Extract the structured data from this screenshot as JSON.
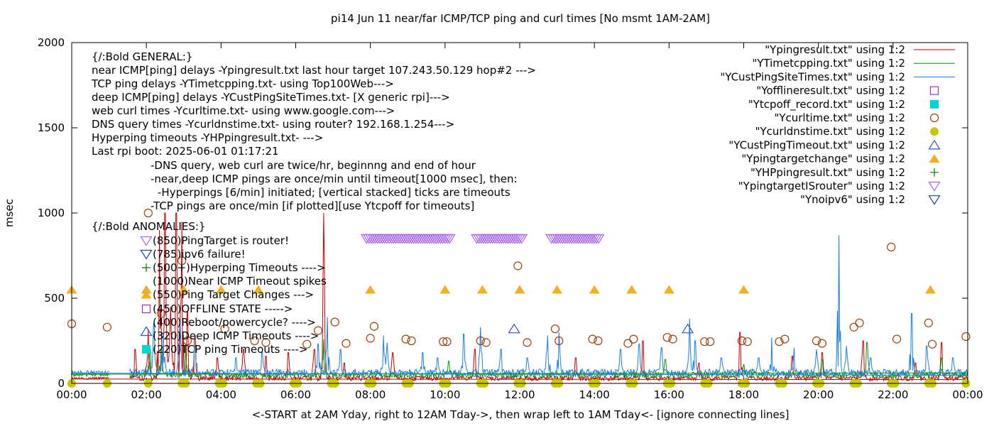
{
  "chart_data": {
    "type": "line",
    "title": "pi14 Jun 11  near/far ICMP/TCP ping and curl times [No msmt 1AM-2AM]",
    "xlabel": "<-START at 2AM Yday, right to 12AM Tday->, then wrap left to 1AM Tday<- [ignore connecting lines]",
    "ylabel": "msec",
    "xlim": [
      0,
      24
    ],
    "ylim": [
      0,
      2000
    ],
    "x_ticks": [
      0,
      2,
      4,
      6,
      8,
      10,
      12,
      14,
      16,
      18,
      20,
      22,
      24
    ],
    "x_tick_labels": [
      "00:00",
      "02:00",
      "04:00",
      "06:00",
      "08:00",
      "10:00",
      "12:00",
      "14:00",
      "16:00",
      "18:00",
      "20:00",
      "22:00",
      "00:00"
    ],
    "y_ticks": [
      0,
      500,
      1000,
      1500,
      2000
    ],
    "y_tick_labels": [
      "0",
      "500",
      "1000",
      "1500",
      "2000"
    ],
    "legend_position": "top-right",
    "legend": [
      {
        "label": "\"Ypingresult.txt\" using 1:2",
        "symbol": "line",
        "color": "#cc0000"
      },
      {
        "label": "\"YTimetcpping.txt\" using 1:2",
        "symbol": "line",
        "color": "#009900"
      },
      {
        "label": "\"YCustPingSiteTimes.txt\" using 1:2",
        "symbol": "line",
        "color": "#1a7fe0"
      },
      {
        "label": "\"Yofflineresult.txt\" using 1:2",
        "symbol": "open-square",
        "color": "#9933cc"
      },
      {
        "label": "\"Ytcpoff_record.txt\" using 1:2",
        "symbol": "filled-square",
        "color": "#00d6d6"
      },
      {
        "label": "\"Ycurltime.txt\" using 1:2",
        "symbol": "open-circle",
        "color": "#a0400a"
      },
      {
        "label": "\"Ycurldnstime.txt\" using 1:2",
        "symbol": "filled-circle",
        "color": "#c8c800"
      },
      {
        "label": "\"YCustPingTimeout.txt\" using 1:2",
        "symbol": "open-triangle-up",
        "color": "#3355cc"
      },
      {
        "label": "\"Ypingtargetchange\" using 1:2",
        "symbol": "filled-triangle-up",
        "color": "#f0b020"
      },
      {
        "label": "\"YHPpingresult.txt\" using 1:2",
        "symbol": "plus",
        "color": "#007700"
      },
      {
        "label": "\"YpingtargetISrouter\" using 1:2",
        "symbol": "open-triangle-down",
        "color": "#aa66ee"
      },
      {
        "label": "\"Ynoipv6\" using 1:2",
        "symbol": "open-triangle-down",
        "color": "#224499"
      }
    ],
    "annotations": [
      "{/:Bold GENERAL:}",
      "near ICMP[ping] delays -Ypingresult.txt last hour target 107.243.50.129 hop#2 --->",
      "TCP ping delays -YTimetcpping.txt- using Top100Web--->",
      "deep ICMP[ping] delays -YCustPingSiteTimes.txt- [X generic rpi]--->",
      "web curl times -Ycurltime.txt- using www.google.com--->",
      "DNS query times -Ycurldnstime.txt- using router? 192.168.1.254--->",
      "Hyperping timeouts -YHPpingresult.txt- --->",
      "Last rpi boot: 2025-06-01 01:17:21",
      "-DNS query, web curl are twice/hr, beginnng and end of hour",
      "-near,deep ICMP pings are once/min until timeout[1000 msec], then:",
      "-Hyperpings [6/min] initiated; [vertical stacked] ticks are timeouts",
      "-TCP pings are once/min [if plotted][use Ytcpoff for timeouts]",
      "{/:Bold ANOMALIES:}",
      "(850)PingTarget is router!",
      "(785)ipv6 failure!",
      "(500+)Hyperping Timeouts ---->",
      "(1000)Near ICMP Timeout spikes",
      "(550)Ping Target Changes --->",
      "(450)OFFLINE STATE ----->",
      "(400)Reboot/powercycle? ---->",
      "(320)Deep ICMP Timeouts ---->",
      "(220)TCP ping Timeouts ---->"
    ],
    "series": [
      {
        "name": "\"Ypingresult.txt\" using 1:2",
        "style": "line",
        "color": "#cc0000",
        "baseline": 30,
        "noise": 15,
        "spikes": [
          [
            1.7,
            200
          ],
          [
            2.05,
            320
          ],
          [
            2.35,
            900
          ],
          [
            2.5,
            1000
          ],
          [
            2.65,
            450
          ],
          [
            2.8,
            1000
          ],
          [
            2.95,
            950
          ],
          [
            3.1,
            420
          ],
          [
            3.3,
            280
          ],
          [
            3.9,
            150
          ],
          [
            4.6,
            200
          ],
          [
            5.2,
            160
          ],
          [
            5.8,
            180
          ],
          [
            6.5,
            200
          ],
          [
            6.75,
            1000
          ],
          [
            7.3,
            120
          ],
          [
            8.6,
            180
          ],
          [
            10.8,
            200
          ],
          [
            13.5,
            150
          ],
          [
            15.3,
            250
          ],
          [
            16.8,
            120
          ],
          [
            17.9,
            300
          ],
          [
            19.3,
            160
          ],
          [
            20.1,
            180
          ],
          [
            21.2,
            250
          ],
          [
            22.6,
            120
          ],
          [
            23.3,
            240
          ]
        ]
      },
      {
        "name": "\"YTimetcpping.txt\" using 1:2",
        "style": "line",
        "color": "#009900",
        "baseline": 50,
        "noise": 18,
        "spikes": [
          [
            2.1,
            200
          ],
          [
            2.4,
            200
          ],
          [
            3.05,
            230
          ],
          [
            6.75,
            260
          ],
          [
            10.1,
            130
          ],
          [
            15.9,
            140
          ],
          [
            18.0,
            110
          ],
          [
            20.1,
            140
          ],
          [
            21.3,
            240
          ],
          [
            23.3,
            150
          ]
        ]
      },
      {
        "name": "\"YCustPingSiteTimes.txt\" using 1:2",
        "style": "line",
        "color": "#1a7fe0",
        "baseline": 65,
        "noise": 20,
        "spikes": [
          [
            2.2,
            350
          ],
          [
            2.45,
            300
          ],
          [
            2.9,
            330
          ],
          [
            3.3,
            220
          ],
          [
            4.4,
            150
          ],
          [
            5.1,
            180
          ],
          [
            6.6,
            230
          ],
          [
            6.85,
            390
          ],
          [
            7.2,
            200
          ],
          [
            8.35,
            280
          ],
          [
            8.45,
            240
          ],
          [
            9.4,
            180
          ],
          [
            9.8,
            150
          ],
          [
            10.5,
            290
          ],
          [
            10.95,
            330
          ],
          [
            11.5,
            200
          ],
          [
            12.2,
            150
          ],
          [
            12.75,
            280
          ],
          [
            13.05,
            300
          ],
          [
            14.7,
            200
          ],
          [
            15.2,
            230
          ],
          [
            15.8,
            210
          ],
          [
            16.55,
            380
          ],
          [
            16.7,
            250
          ],
          [
            17.4,
            150
          ],
          [
            18.4,
            150
          ],
          [
            18.75,
            270
          ],
          [
            19.35,
            210
          ],
          [
            19.95,
            200
          ],
          [
            20.55,
            870
          ],
          [
            20.75,
            220
          ],
          [
            21.4,
            150
          ],
          [
            22.5,
            410
          ],
          [
            22.9,
            220
          ],
          [
            23.6,
            150
          ]
        ]
      },
      {
        "name": "\"Ycurltime.txt\" using 1:2",
        "style": "open-circle",
        "color": "#a0400a",
        "points": [
          [
            0.0,
            350
          ],
          [
            0.95,
            330
          ],
          [
            2.05,
            1000
          ],
          [
            2.4,
            410
          ],
          [
            2.95,
            720
          ],
          [
            3.1,
            250
          ],
          [
            4.1,
            320
          ],
          [
            4.9,
            250
          ],
          [
            5.2,
            240
          ],
          [
            6.3,
            230
          ],
          [
            6.6,
            310
          ],
          [
            7.05,
            360
          ],
          [
            7.35,
            235
          ],
          [
            8.0,
            265
          ],
          [
            8.1,
            335
          ],
          [
            8.95,
            260
          ],
          [
            9.1,
            250
          ],
          [
            9.95,
            245
          ],
          [
            10.05,
            245
          ],
          [
            10.95,
            250
          ],
          [
            11.1,
            240
          ],
          [
            11.95,
            690
          ],
          [
            12.2,
            240
          ],
          [
            12.95,
            320
          ],
          [
            13.05,
            250
          ],
          [
            13.95,
            260
          ],
          [
            14.1,
            250
          ],
          [
            14.9,
            235
          ],
          [
            15.05,
            260
          ],
          [
            15.95,
            270
          ],
          [
            16.1,
            260
          ],
          [
            16.95,
            245
          ],
          [
            17.1,
            245
          ],
          [
            17.95,
            250
          ],
          [
            18.1,
            245
          ],
          [
            18.95,
            245
          ],
          [
            19.1,
            260
          ],
          [
            19.95,
            250
          ],
          [
            20.1,
            235
          ],
          [
            20.95,
            330
          ],
          [
            21.1,
            355
          ],
          [
            21.95,
            800
          ],
          [
            22.1,
            260
          ],
          [
            22.95,
            355
          ],
          [
            23.05,
            230
          ],
          [
            23.95,
            275
          ]
        ]
      },
      {
        "name": "\"Ycurldnstime.txt\" using 1:2",
        "style": "filled-circle",
        "color": "#c8c800",
        "points": [
          [
            0.0,
            0
          ],
          [
            0.95,
            0
          ],
          [
            2.05,
            0
          ],
          [
            2.95,
            0
          ],
          [
            3.05,
            0
          ],
          [
            3.95,
            0
          ],
          [
            4.05,
            0
          ],
          [
            4.95,
            0
          ],
          [
            5.05,
            0
          ],
          [
            5.95,
            0
          ],
          [
            6.05,
            0
          ],
          [
            6.95,
            0
          ],
          [
            7.05,
            0
          ],
          [
            7.95,
            0
          ],
          [
            8.05,
            0
          ],
          [
            8.95,
            0
          ],
          [
            9.05,
            0
          ],
          [
            9.95,
            0
          ],
          [
            10.05,
            0
          ],
          [
            10.95,
            0
          ],
          [
            11.05,
            0
          ],
          [
            11.95,
            0
          ],
          [
            12.05,
            0
          ],
          [
            12.95,
            0
          ],
          [
            13.05,
            0
          ],
          [
            13.95,
            0
          ],
          [
            14.05,
            0
          ],
          [
            14.95,
            0
          ],
          [
            15.05,
            0
          ],
          [
            15.95,
            0
          ],
          [
            16.05,
            0
          ],
          [
            16.95,
            0
          ],
          [
            17.05,
            0
          ],
          [
            17.95,
            0
          ],
          [
            18.05,
            0
          ],
          [
            18.95,
            0
          ],
          [
            19.05,
            0
          ],
          [
            19.95,
            0
          ],
          [
            20.05,
            0
          ],
          [
            20.95,
            0
          ],
          [
            21.05,
            0
          ],
          [
            21.95,
            0
          ],
          [
            22.05,
            0
          ],
          [
            22.95,
            0
          ],
          [
            23.05,
            0
          ],
          [
            23.95,
            0
          ]
        ]
      },
      {
        "name": "\"YCustPingTimeout.txt\" using 1:2",
        "style": "open-triangle-up",
        "color": "#3355cc",
        "points": [
          [
            11.85,
            320
          ],
          [
            16.5,
            320
          ]
        ]
      },
      {
        "name": "\"Ypingtargetchange\" using 1:2",
        "style": "filled-triangle-up",
        "color": "#f0b020",
        "points": [
          [
            0.0,
            550
          ],
          [
            2.0,
            550
          ],
          [
            3.0,
            550
          ],
          [
            4.0,
            550
          ],
          [
            5.0,
            550
          ],
          [
            8.0,
            550
          ],
          [
            10.0,
            550
          ],
          [
            11.0,
            550
          ],
          [
            12.0,
            550
          ],
          [
            13.0,
            550
          ],
          [
            14.0,
            550
          ],
          [
            15.0,
            550
          ],
          [
            16.0,
            550
          ],
          [
            18.0,
            550
          ],
          [
            23.0,
            550
          ]
        ]
      },
      {
        "name": "\"YpingtargetISrouter\" using 1:2",
        "style": "open-triangle-down",
        "color": "#aa66ee",
        "segments": [
          [
            7.9,
            10.15,
            850
          ],
          [
            10.85,
            12.1,
            850
          ],
          [
            12.85,
            14.15,
            850
          ]
        ]
      }
    ]
  }
}
